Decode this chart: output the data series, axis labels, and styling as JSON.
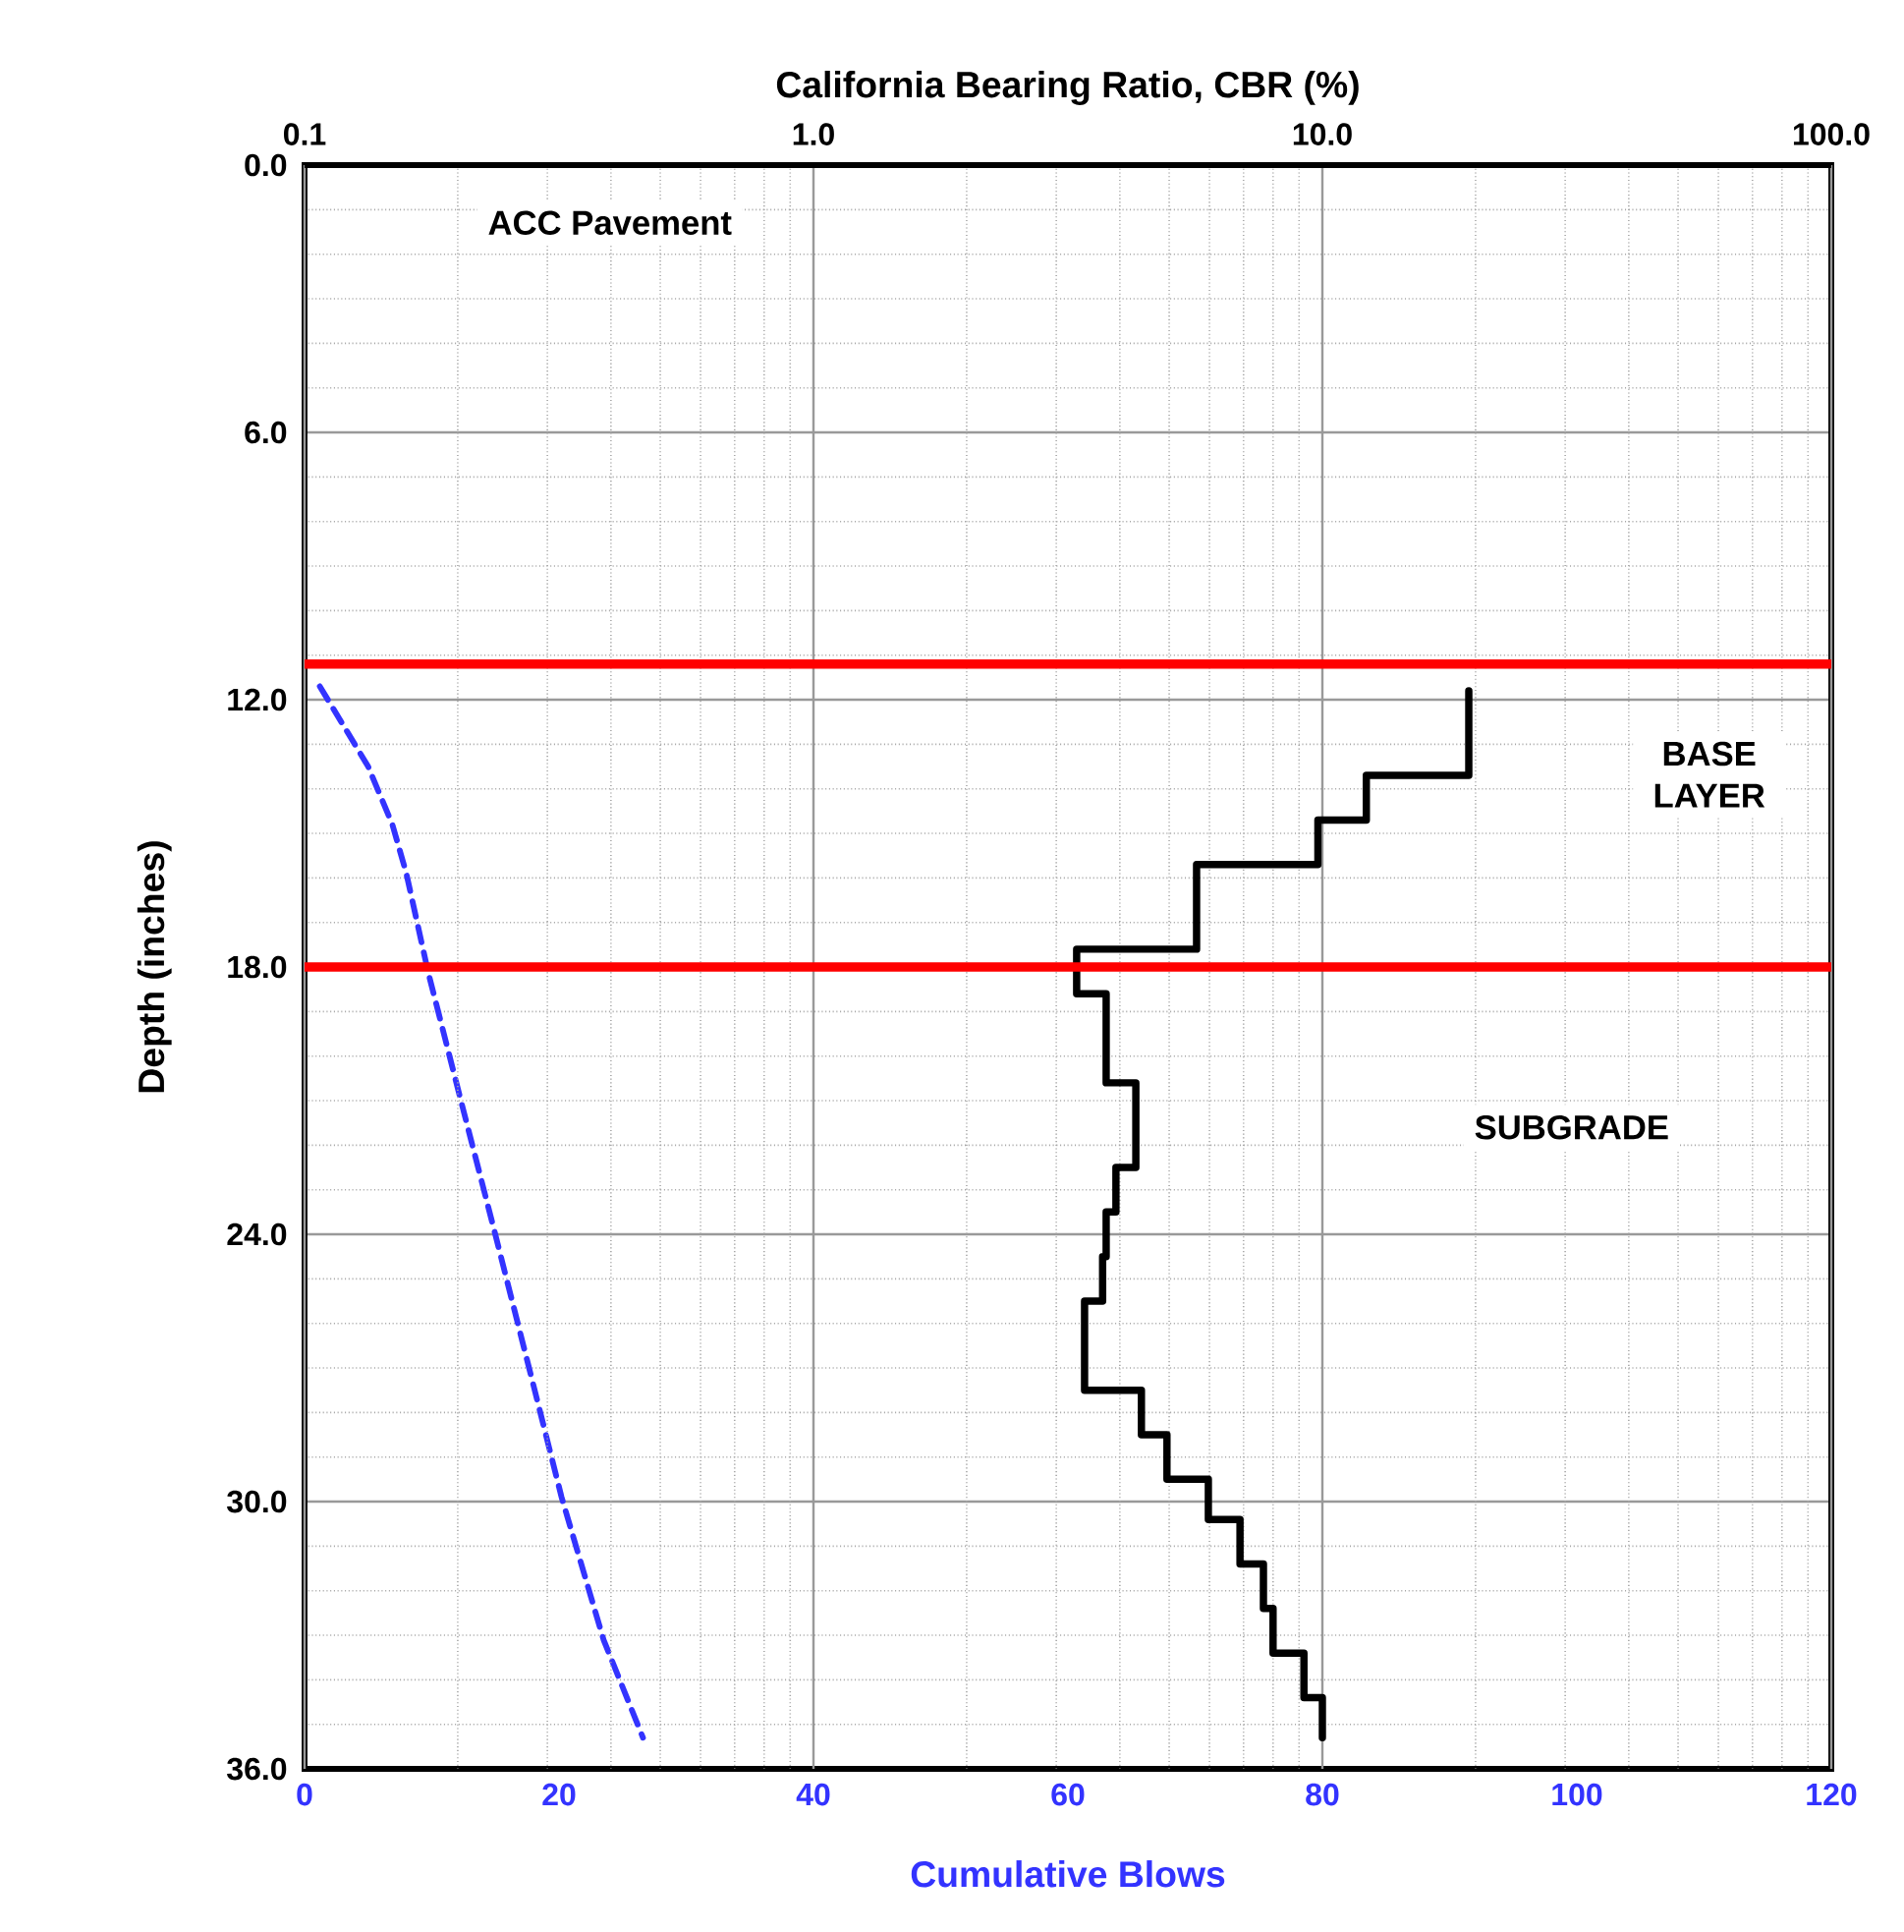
{
  "chart_data": {
    "type": "line",
    "x2label": "California Bearing Ratio, CBR (%)",
    "xlabel": "Cumulative Blows",
    "ylabel": "Depth (inches)",
    "log": "x2",
    "x2lim": [
      0.1,
      100
    ],
    "x2ticks": [
      {
        "value": 0.1,
        "label": "0.1"
      },
      {
        "value": 1,
        "label": "1.0"
      },
      {
        "value": 10,
        "label": "10.0"
      },
      {
        "value": 100,
        "label": "100.0"
      }
    ],
    "xlim": [
      0,
      120
    ],
    "xticks": [
      0,
      20,
      40,
      60,
      80,
      100,
      120
    ],
    "ylim": [
      36,
      0
    ],
    "yticks": [
      {
        "value": 0,
        "label": "0.0"
      },
      {
        "value": 6,
        "label": "6.0"
      },
      {
        "value": 12,
        "label": "12.0"
      },
      {
        "value": 18,
        "label": "18.0"
      },
      {
        "value": 24,
        "label": "24.0"
      },
      {
        "value": 30,
        "label": "30.0"
      },
      {
        "value": 36,
        "label": "36.0"
      }
    ],
    "grid": true,
    "marker": "none",
    "series": [
      {
        "axis": "x2",
        "color": "#000000",
        "line_style": "solid",
        "x": [
          19.4,
          19.4,
          12.2,
          12.2,
          9.8,
          9.8,
          5.66,
          5.66,
          3.29,
          3.29,
          3.76,
          3.76,
          4.3,
          4.3,
          3.93,
          3.93,
          3.76,
          3.76,
          3.7,
          3.7,
          3.41,
          3.41,
          4.41,
          4.41,
          4.95,
          4.95,
          5.97,
          5.97,
          6.89,
          6.89,
          7.66,
          7.66,
          8.0,
          8.0,
          9.2,
          9.2,
          10.0,
          10.0
        ],
        "values": [
          11.8,
          13.7,
          13.7,
          14.7,
          14.7,
          15.7,
          15.7,
          17.6,
          17.6,
          18.6,
          18.6,
          20.6,
          20.6,
          22.5,
          22.5,
          23.5,
          23.5,
          24.5,
          24.5,
          25.5,
          25.5,
          27.5,
          27.5,
          28.5,
          28.5,
          29.5,
          29.5,
          30.4,
          30.4,
          31.4,
          31.4,
          32.4,
          32.4,
          33.4,
          33.4,
          34.4,
          34.4,
          35.3
        ]
      },
      {
        "color": "#3333ff",
        "line_style": "dashed",
        "x": [
          1.2,
          5.0,
          6.9,
          8.0,
          9.7,
          12.2,
          14.9,
          18.0,
          20.2,
          23.5,
          26.6
        ],
        "values": [
          11.7,
          13.5,
          14.8,
          15.9,
          18.1,
          20.9,
          23.9,
          27.4,
          29.9,
          33.1,
          35.3
        ]
      }
    ],
    "ref_lines": [
      {
        "axis": "y",
        "value": 11.2,
        "color": "#ff0000"
      },
      {
        "axis": "y",
        "value": 18.0,
        "color": "#ff0000"
      }
    ],
    "annotations": [
      "ACC Pavement",
      "BASE LAYER",
      "SUBGRADE"
    ]
  }
}
